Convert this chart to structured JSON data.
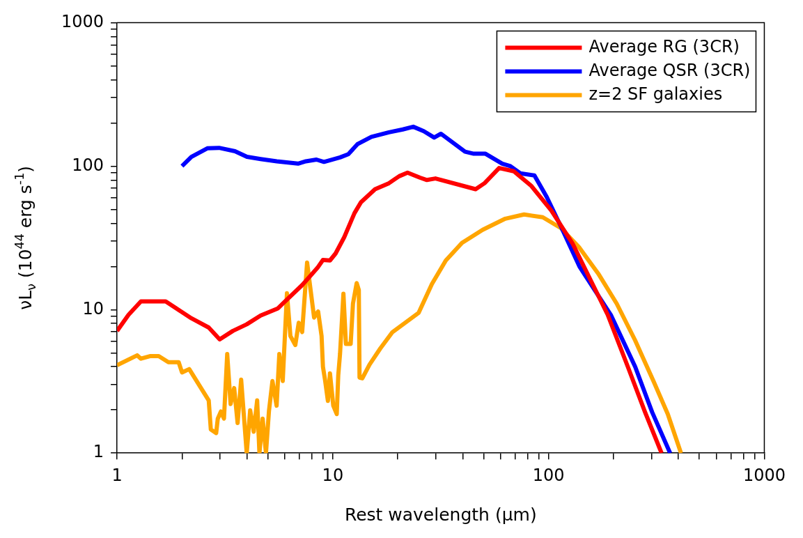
{
  "chart_data": {
    "type": "line",
    "xlabel": "Rest wavelength (μm)",
    "ylabel": "νL$_{ν}$ (10$^{44}$ erg s$^{-1}$)",
    "log": "xy",
    "grid": false,
    "legend": "top right",
    "marker": "none",
    "line_style": "solid",
    "xlim": [
      1,
      1000
    ],
    "ylim": [
      1,
      1000
    ],
    "xticks": [
      1,
      {
        "value": 2,
        "label": null
      },
      {
        "value": 3,
        "label": null
      },
      {
        "value": 4,
        "label": null
      },
      {
        "value": 5,
        "label": null
      },
      {
        "value": 6,
        "label": null
      },
      {
        "value": 7,
        "label": null
      },
      {
        "value": 8,
        "label": null
      },
      {
        "value": 9,
        "label": null
      },
      10,
      {
        "value": 20,
        "label": null
      },
      {
        "value": 30,
        "label": null
      },
      {
        "value": 40,
        "label": null
      },
      {
        "value": 50,
        "label": null
      },
      {
        "value": 60,
        "label": null
      },
      {
        "value": 70,
        "label": null
      },
      {
        "value": 80,
        "label": null
      },
      {
        "value": 90,
        "label": null
      },
      100,
      {
        "value": 200,
        "label": null
      },
      {
        "value": 300,
        "label": null
      },
      {
        "value": 400,
        "label": null
      },
      {
        "value": 500,
        "label": null
      },
      {
        "value": 600,
        "label": null
      },
      {
        "value": 700,
        "label": null
      },
      {
        "value": 800,
        "label": null
      },
      {
        "value": 900,
        "label": null
      },
      1000
    ],
    "yticks": [
      1,
      {
        "value": 2,
        "label": null
      },
      {
        "value": 3,
        "label": null
      },
      {
        "value": 4,
        "label": null
      },
      {
        "value": 5,
        "label": null
      },
      {
        "value": 6,
        "label": null
      },
      {
        "value": 7,
        "label": null
      },
      {
        "value": 8,
        "label": null
      },
      {
        "value": 9,
        "label": null
      },
      10,
      {
        "value": 20,
        "label": null
      },
      {
        "value": 30,
        "label": null
      },
      {
        "value": 40,
        "label": null
      },
      {
        "value": 50,
        "label": null
      },
      {
        "value": 60,
        "label": null
      },
      {
        "value": 70,
        "label": null
      },
      {
        "value": 80,
        "label": null
      },
      {
        "value": 90,
        "label": null
      },
      100,
      {
        "value": 200,
        "label": null
      },
      {
        "value": 300,
        "label": null
      },
      {
        "value": 400,
        "label": null
      },
      {
        "value": 500,
        "label": null
      },
      {
        "value": 600,
        "label": null
      },
      {
        "value": 700,
        "label": null
      },
      {
        "value": 800,
        "label": null
      },
      {
        "value": 900,
        "label": null
      },
      1000
    ],
    "series": [
      {
        "name": "Average RG (3CR)",
        "color": "#ff0000",
        "x": [
          1,
          1.13,
          1.29,
          1.68,
          1.98,
          2.21,
          2.66,
          2.99,
          3.44,
          3.99,
          4.63,
          5.57,
          6.0,
          7.2,
          7.9,
          8.5,
          9.0,
          9.7,
          10.3,
          11.3,
          12.6,
          13.5,
          15.7,
          18.2,
          20.3,
          22.2,
          25.4,
          27.3,
          29.9,
          45.9,
          50.5,
          59,
          69,
          83,
          103,
          129,
          188,
          233,
          280,
          334
        ],
        "values": [
          7.1,
          9.2,
          11.4,
          11.4,
          9.7,
          8.7,
          7.5,
          6.2,
          7.1,
          7.9,
          9.1,
          10.2,
          11.4,
          14.8,
          17.3,
          19.6,
          22.2,
          22,
          24.6,
          32,
          47,
          56,
          69,
          76,
          85,
          90,
          83,
          80,
          82,
          69,
          76,
          97,
          92,
          73,
          49,
          29,
          9.2,
          4.0,
          1.93,
          1.0
        ]
      },
      {
        "name": "Average QSR (3CR)",
        "color": "#0000ff",
        "x": [
          2.0,
          2.21,
          2.62,
          2.97,
          3.52,
          4.0,
          4.63,
          5.5,
          6.9,
          7.5,
          8.4,
          9.1,
          10.8,
          11.8,
          13.0,
          15.1,
          18.2,
          21.1,
          23.6,
          26.4,
          29.5,
          31.7,
          41,
          45,
          51,
          61,
          66.5,
          74,
          86,
          98,
          116,
          139,
          195,
          252,
          302,
          366
        ],
        "values": [
          100,
          116,
          133,
          134,
          127,
          116,
          112,
          108,
          104,
          108,
          111,
          107,
          115,
          121,
          142,
          160,
          172,
          180,
          188,
          175,
          158,
          168,
          126,
          122,
          122,
          104,
          100,
          89,
          86,
          61,
          36,
          20,
          9.1,
          4.0,
          1.93,
          1.0
        ]
      },
      {
        "name": "z=2 SF galaxies",
        "color": "#ffa500",
        "x": [
          1,
          1.24,
          1.29,
          1.42,
          1.56,
          1.73,
          1.93,
          2.0,
          2.16,
          2.66,
          2.72,
          2.88,
          2.93,
          3.03,
          3.13,
          3.24,
          3.36,
          3.49,
          3.62,
          3.76,
          3.99,
          4.14,
          4.3,
          4.46,
          4.57,
          4.73,
          4.9,
          5.06,
          5.25,
          5.49,
          5.65,
          5.86,
          6.13,
          6.36,
          6.7,
          6.95,
          7.21,
          7.6,
          8.19,
          8.55,
          8.87,
          9.0,
          9.2,
          9.49,
          9.7,
          10.05,
          10.43,
          10.6,
          10.8,
          11.2,
          11.5,
          12.1,
          12.4,
          12.9,
          13.2,
          13.3,
          13.7,
          14.8,
          16.6,
          18.9,
          25.0,
          28.8,
          33.4,
          39.7,
          49.5,
          63,
          77,
          94,
          114,
          139,
          170,
          207,
          252,
          307,
          357,
          411
        ],
        "values": [
          4.1,
          4.8,
          4.55,
          4.74,
          4.74,
          4.3,
          4.3,
          3.65,
          3.85,
          2.33,
          1.46,
          1.38,
          1.74,
          1.95,
          1.74,
          4.9,
          2.2,
          2.84,
          1.62,
          3.25,
          1.0,
          1.99,
          1.41,
          2.33,
          1.0,
          1.74,
          1.0,
          1.97,
          3.18,
          2.14,
          4.9,
          3.18,
          13.0,
          6.55,
          5.66,
          8.1,
          6.97,
          21.3,
          8.8,
          9.7,
          6.55,
          4.0,
          3.25,
          2.31,
          3.6,
          2.14,
          1.87,
          3.5,
          4.9,
          12.9,
          5.77,
          5.77,
          11.0,
          15.3,
          13.7,
          3.36,
          3.32,
          4.14,
          5.36,
          6.97,
          9.5,
          15.1,
          22.0,
          29.2,
          36,
          43,
          46,
          44,
          37,
          27,
          17.8,
          11.0,
          6.1,
          3.15,
          1.87,
          1.0
        ]
      }
    ]
  }
}
